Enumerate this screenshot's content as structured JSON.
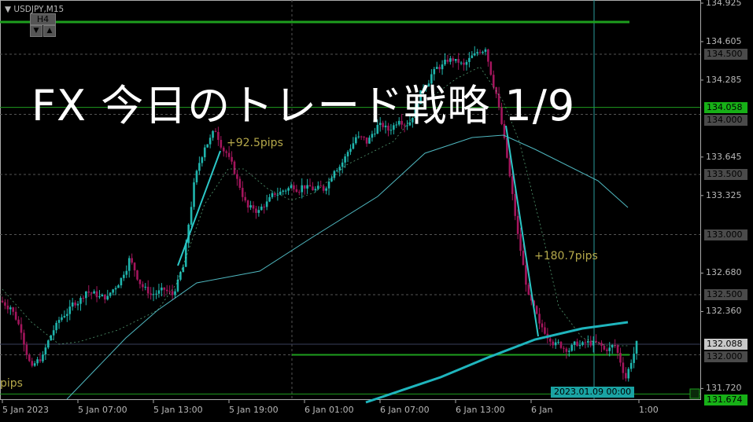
{
  "header": {
    "symbol": "USDJPY,M15",
    "timeframe_button": "H4",
    "down_arrow": "▼",
    "up_arrow": "▲"
  },
  "overlay_title": "FX 今日のトレード戦略 1/9",
  "annotations": {
    "up_move": "+92.5pips",
    "down_move": "+180.7pips",
    "partial_left": "pips"
  },
  "colors": {
    "bull": "#1fb5ad",
    "bear": "#a3155c",
    "level_line": "#1e9e1e",
    "grid": "#555555",
    "ma": "#4fb8c0"
  },
  "chart_data": {
    "type": "candlestick",
    "symbol": "USDJPY",
    "timeframe": "M15",
    "ylim": [
      131.62,
      134.95
    ],
    "y_ticks": [
      "134.925",
      "134.605",
      "134.285",
      "133.645",
      "133.325",
      "132.680",
      "132.360",
      "131.720"
    ],
    "x_ticks": [
      "5 Jan 2023",
      "5 Jan 07:00",
      "5 Jan 13:00",
      "5 Jan 19:00",
      "6 Jan 01:00",
      "6 Jan 07:00",
      "6 Jan 13:00",
      "6 Jan",
      "1:00"
    ],
    "hourly_close": [
      132.4,
      132.21,
      131.88,
      131.98,
      132.21,
      132.34,
      132.44,
      132.53,
      132.5,
      132.47,
      132.6,
      132.79,
      132.6,
      132.5,
      132.53,
      132.5,
      132.73,
      133.41,
      133.74,
      133.87,
      133.68,
      133.45,
      133.22,
      133.19,
      133.29,
      133.35,
      133.4,
      133.4,
      133.38,
      133.38,
      133.55,
      133.64,
      133.81,
      133.77,
      133.9,
      133.87,
      133.97,
      133.94,
      134.17,
      134.33,
      134.4,
      134.46,
      134.4,
      134.49,
      134.56,
      134.17,
      133.64,
      132.99,
      132.47,
      132.24,
      132.14,
      132.08,
      132.06,
      132.08,
      132.09,
      132.04,
      132.08,
      131.81,
      132.09
    ],
    "price_labels": [
      {
        "value": "134.500",
        "kind": "grid"
      },
      {
        "value": "134.058",
        "kind": "line-green"
      },
      {
        "value": "134.000",
        "kind": "grid"
      },
      {
        "value": "133.500",
        "kind": "grid"
      },
      {
        "value": "133.000",
        "kind": "grid"
      },
      {
        "value": "132.500",
        "kind": "grid"
      },
      {
        "value": "132.088",
        "kind": "bid"
      },
      {
        "value": "132.000",
        "kind": "grid"
      },
      {
        "value": "131.674",
        "kind": "line-green"
      }
    ],
    "horizontal_lines": [
      134.77,
      134.058,
      132.0,
      131.674
    ],
    "current_price": 132.088,
    "crosshair_time": "2023.01.09 00:00"
  }
}
